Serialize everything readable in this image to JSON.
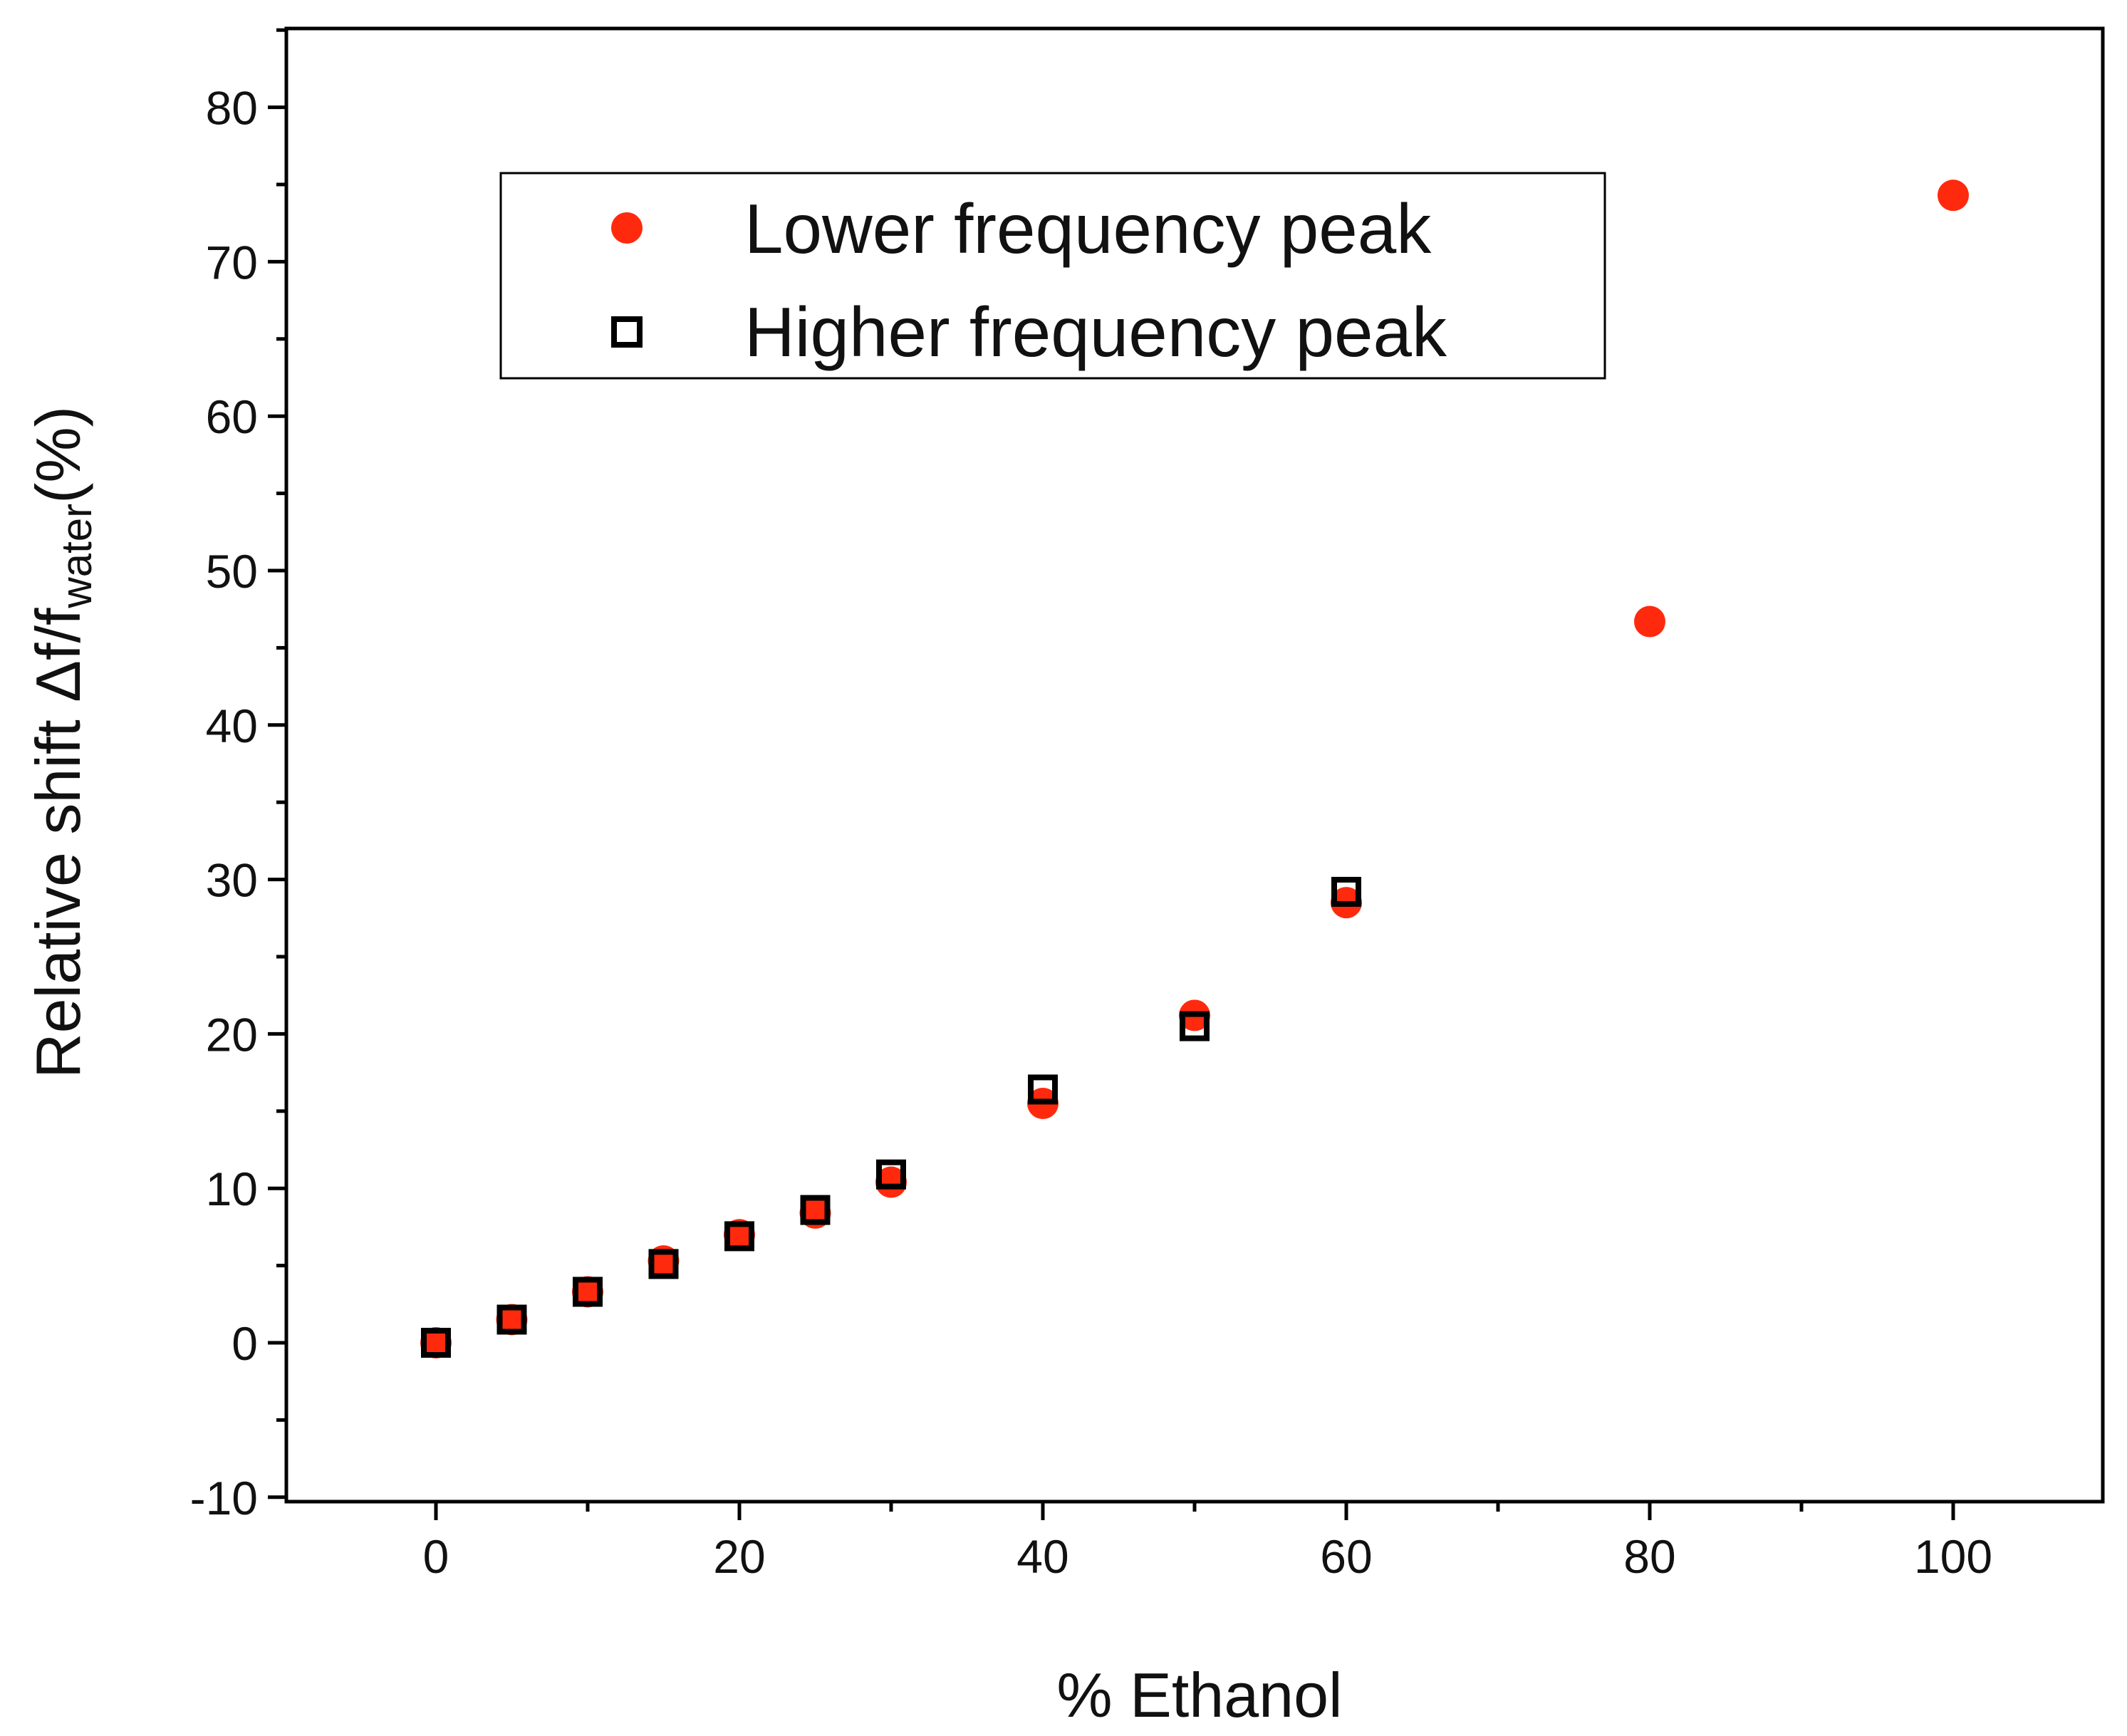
{
  "chart_data": {
    "type": "scatter",
    "title": "",
    "xlabel": "% Ethanol",
    "ylabel": {
      "main": "Relative shift Δf/f",
      "subscript": "water",
      "suffix": "(%)"
    },
    "xlim": [
      -10,
      110
    ],
    "ylim": [
      -10,
      85
    ],
    "x_ticks": [
      0,
      20,
      40,
      60,
      80,
      100
    ],
    "y_ticks": [
      -10,
      0,
      10,
      20,
      30,
      40,
      50,
      60,
      70,
      80
    ],
    "x_tick_labels": [
      "0",
      "20",
      "40",
      "60",
      "80",
      "100"
    ],
    "y_tick_labels": [
      "-10",
      "0",
      "10",
      "20",
      "30",
      "40",
      "50",
      "60",
      "70",
      "80"
    ],
    "grid": false,
    "legend_position": "top-center",
    "series": [
      {
        "name": "Lower frequency peak",
        "marker": "filled-circle",
        "color": "#ff2a0d",
        "x": [
          0,
          5,
          10,
          15,
          20,
          25,
          30,
          40,
          50,
          60,
          80,
          100
        ],
        "y": [
          0,
          1.5,
          3.3,
          5.3,
          7.0,
          8.4,
          10.4,
          15.5,
          21.2,
          28.5,
          46.7,
          74.3
        ]
      },
      {
        "name": "Higher frequency peak",
        "marker": "open-square",
        "color": "#000000",
        "x": [
          0,
          5,
          10,
          15,
          20,
          25,
          30,
          40,
          50,
          60
        ],
        "y": [
          0,
          1.5,
          3.3,
          5.1,
          6.9,
          8.6,
          10.9,
          16.4,
          20.5,
          29.2
        ]
      }
    ]
  }
}
